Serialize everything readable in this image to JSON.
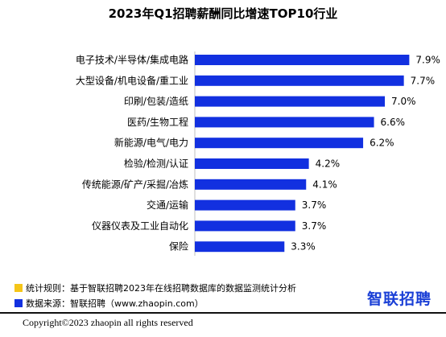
{
  "chart_data": {
    "type": "bar",
    "orientation": "horizontal",
    "title": "2023年Q1招聘薪酬同比增速TOP10行业",
    "categories": [
      "电子技术/半导体/集成电路",
      "大型设备/机电设备/重工业",
      "印刷/包装/造纸",
      "医药/生物工程",
      "新能源/电气/电力",
      "检验/检测/认证",
      "传统能源/矿产/采掘/冶炼",
      "交通/运输",
      "仪器仪表及工业自动化",
      "保险"
    ],
    "values": [
      7.9,
      7.7,
      7.0,
      6.6,
      6.2,
      4.2,
      4.1,
      3.7,
      3.7,
      3.3
    ],
    "value_labels": [
      "7.9%",
      "7.7%",
      "7.0%",
      "6.6%",
      "6.2%",
      "4.2%",
      "4.1%",
      "3.7%",
      "3.7%",
      "3.3%"
    ],
    "bar_color": "#1230e0",
    "xlim": [
      0,
      8.6
    ],
    "grid": false
  },
  "footer": {
    "legend": [
      {
        "text": "统计规则：基于智联招聘2023年在线招聘数据库的数据监测统计分析",
        "color": "#f5c518"
      },
      {
        "text": "数据来源：智联招聘（www.zhaopin.com）",
        "color": "#1230e0"
      }
    ],
    "logo": "智联招聘",
    "copyright": "Copyright©2023 zhaopin all rights reserved"
  }
}
